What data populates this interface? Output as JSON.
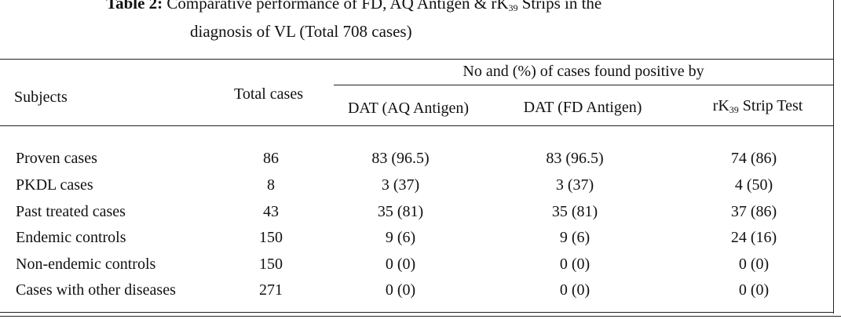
{
  "title": {
    "label": "Table 2:",
    "line1": "Comparative performance of FD, AQ Antigen & rK",
    "line1_sub": "39",
    "line1_rest": " Strips in the",
    "line2": "diagnosis of VL (Total 708 cases)"
  },
  "table": {
    "group_header": "No and (%) of cases found positive by",
    "headers": [
      "Subjects",
      "Total cases",
      "DAT (AQ Antigen)",
      "DAT (FD Antigen)"
    ],
    "rk_header": {
      "main": "rK",
      "sub": "39",
      "rest": " Strip Test"
    },
    "rows": [
      [
        "Proven cases",
        "86",
        "83 (96.5)",
        "83 (96.5)",
        "74 (86)"
      ],
      [
        "PKDL cases",
        "8",
        "3 (37)",
        "3 (37)",
        "4 (50)"
      ],
      [
        "Past treated cases",
        "43",
        "35 (81)",
        "35 (81)",
        "37 (86)"
      ],
      [
        "Endemic controls",
        "150",
        "9 (6)",
        "9 (6)",
        "24 (16)"
      ],
      [
        "Non-endemic controls",
        "150",
        "0 (0)",
        "0 (0)",
        "0 (0)"
      ],
      [
        "Cases with other diseases",
        "271",
        "0 (0)",
        "0 (0)",
        "0 (0)"
      ]
    ]
  }
}
